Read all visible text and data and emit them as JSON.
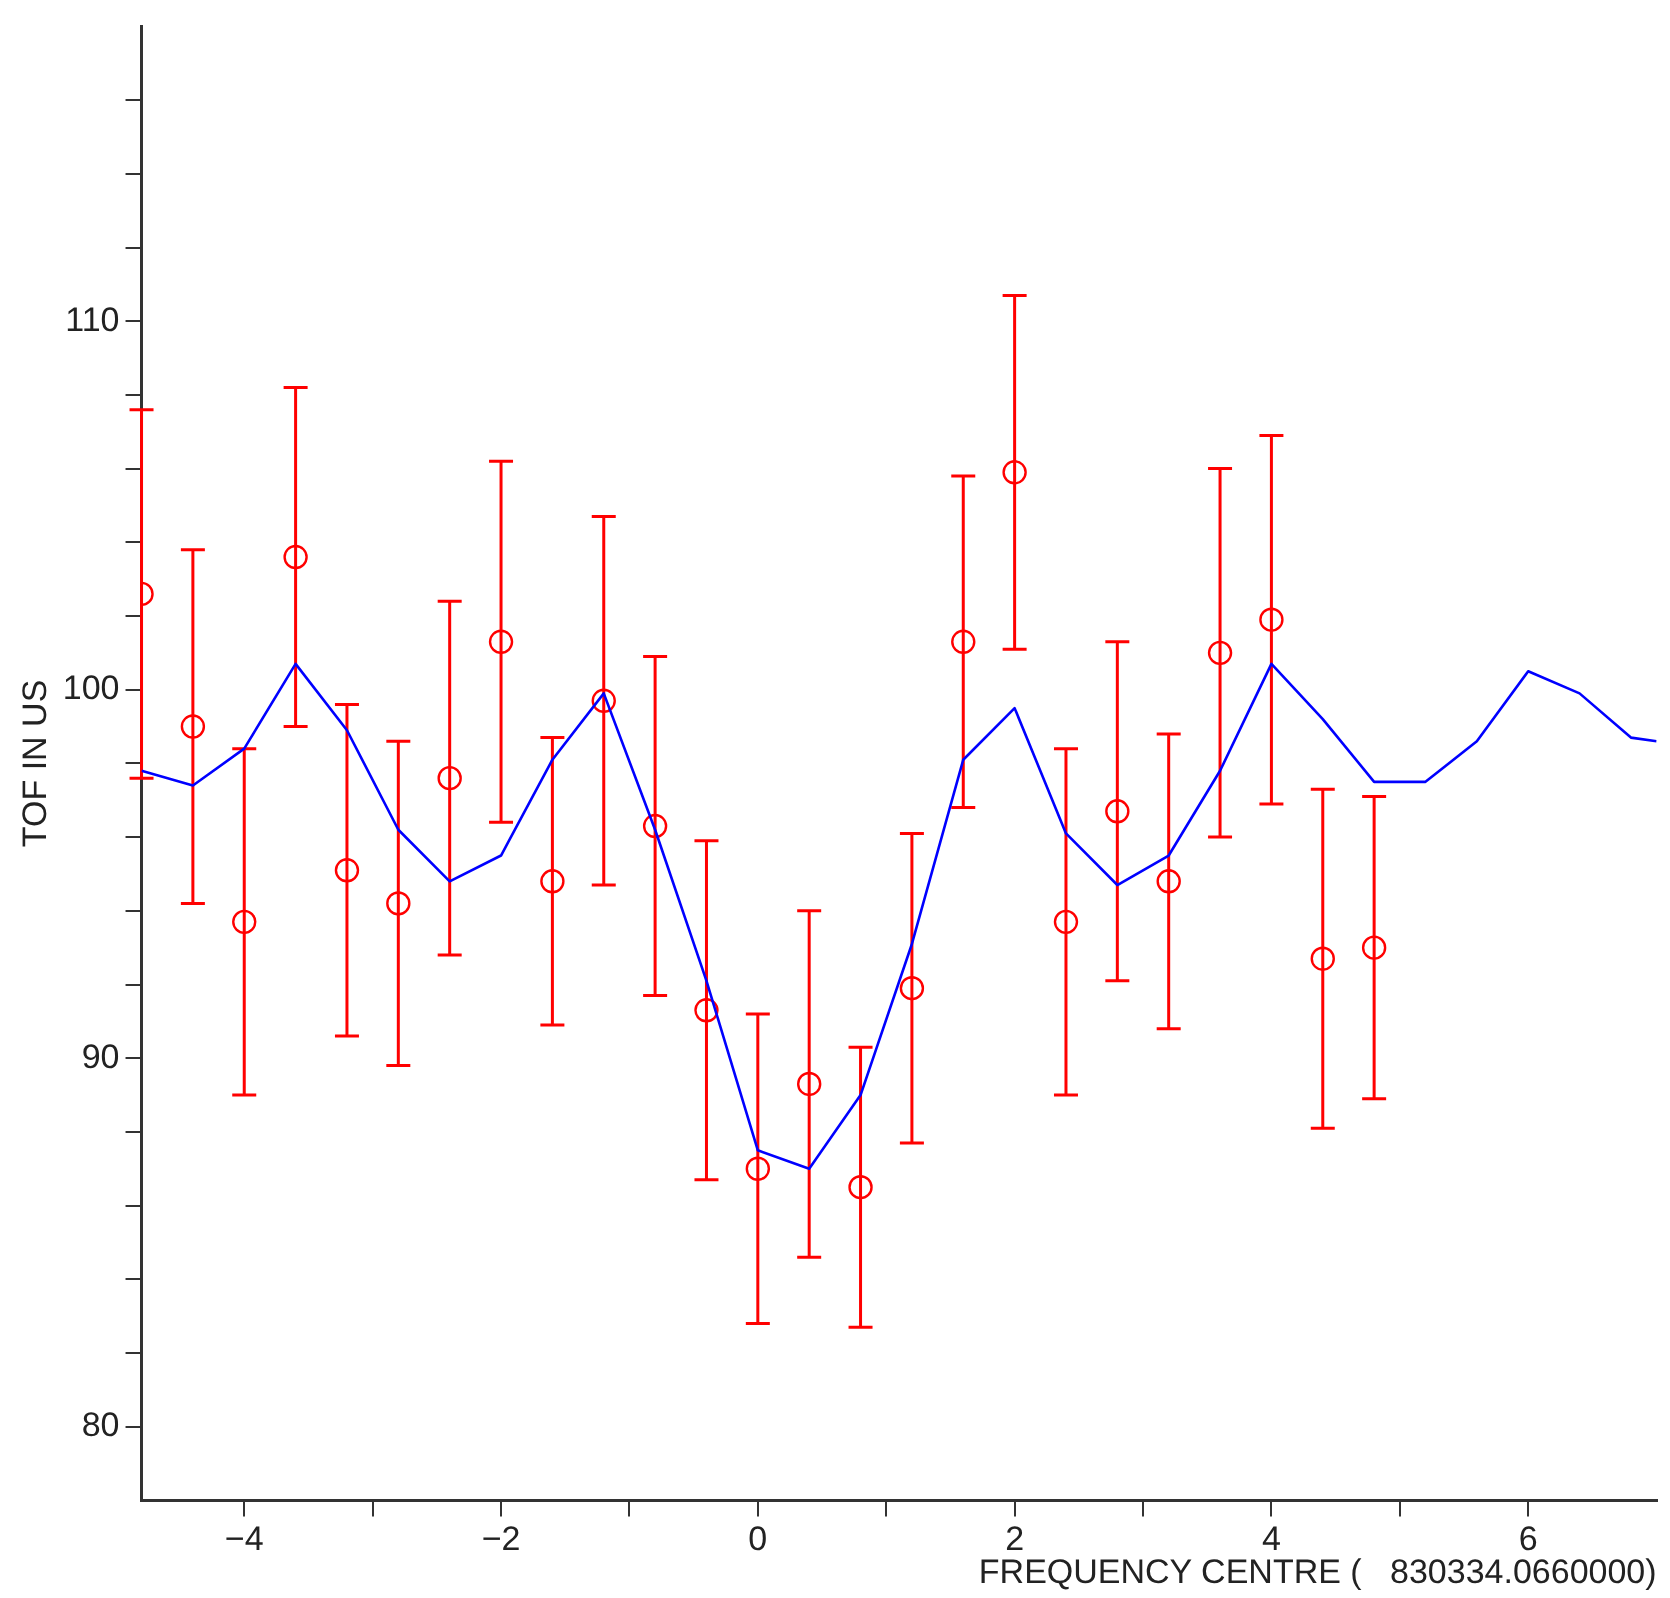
{
  "chart_data": {
    "type": "scatter",
    "xlabel": "FREQUENCY CENTRE (   830334.0660000)",
    "ylabel": "TOF IN US",
    "xlim": [
      -4.8,
      7
    ],
    "ylim": [
      78,
      118
    ],
    "xticks": [
      {
        "value": -4,
        "label": "−4"
      },
      {
        "value": -3,
        "label": null
      },
      {
        "value": -2,
        "label": "−2"
      },
      {
        "value": -1,
        "label": null
      },
      0,
      {
        "value": 1,
        "label": null
      },
      2,
      {
        "value": 3,
        "label": null
      },
      4,
      {
        "value": 5,
        "label": null
      },
      6
    ],
    "yticks": [
      80,
      {
        "value": 82,
        "label": null
      },
      {
        "value": 84,
        "label": null
      },
      {
        "value": 86,
        "label": null
      },
      {
        "value": 88,
        "label": null
      },
      90,
      {
        "value": 92,
        "label": null
      },
      {
        "value": 94,
        "label": null
      },
      {
        "value": 96,
        "label": null
      },
      {
        "value": 98,
        "label": null
      },
      100,
      {
        "value": 102,
        "label": null
      },
      {
        "value": 104,
        "label": null
      },
      {
        "value": 106,
        "label": null
      },
      {
        "value": 108,
        "label": null
      },
      110,
      {
        "value": 112,
        "label": null
      },
      {
        "value": 114,
        "label": null
      },
      {
        "value": 116,
        "label": null
      }
    ],
    "grid": false,
    "legend": false,
    "series": [
      {
        "type": "line",
        "color": "#0000ff",
        "marker": "none",
        "line_style": "solid",
        "x": [
          -4.8,
          -4.4,
          -4.0,
          -3.6,
          -3.2,
          -2.8,
          -2.4,
          -2.0,
          -1.6,
          -1.2,
          -0.8,
          -0.4,
          0,
          0.4,
          0.8,
          1.2,
          1.6,
          2.0,
          2.4,
          2.8,
          3.2,
          3.6,
          4.0,
          4.4,
          4.8,
          5.2,
          5.6,
          6.0,
          6.4,
          6.8,
          7.0
        ],
        "values": [
          97.8,
          97.4,
          98.4,
          100.7,
          98.9,
          96.2,
          94.8,
          95.5,
          98.1,
          99.9,
          96.2,
          92.1,
          87.5,
          87.0,
          89.0,
          93.1,
          98.1,
          99.5,
          96.1,
          94.7,
          95.5,
          97.8,
          100.7,
          99.2,
          97.5,
          97.5,
          98.6,
          100.5,
          99.9,
          98.7,
          98.6
        ]
      },
      {
        "type": "scatter",
        "color": "#ff0000",
        "marker": "circle",
        "x": [
          -4.8,
          -4.4,
          -4.0,
          -3.6,
          -3.2,
          -2.8,
          -2.4,
          -2.0,
          -1.6,
          -1.2,
          -0.8,
          -0.4,
          0,
          0.4,
          0.8,
          1.2,
          1.6,
          2.0,
          2.4,
          2.8,
          3.2,
          3.6,
          4.0,
          4.4,
          4.8
        ],
        "values": [
          102.6,
          99.0,
          93.7,
          103.6,
          95.1,
          94.2,
          97.6,
          101.3,
          94.8,
          99.7,
          96.3,
          91.3,
          87.0,
          89.3,
          86.5,
          91.9,
          101.3,
          105.9,
          93.7,
          96.7,
          94.8,
          101.0,
          101.9,
          92.7,
          93.0
        ],
        "errors": [
          5.0,
          4.8,
          4.7,
          4.6,
          4.5,
          4.4,
          4.8,
          4.9,
          3.9,
          5.0,
          4.6,
          4.6,
          4.2,
          4.7,
          3.8,
          4.2,
          4.5,
          4.8,
          4.7,
          4.6,
          4.0,
          5.0,
          5.0,
          4.6,
          4.1
        ]
      }
    ]
  }
}
